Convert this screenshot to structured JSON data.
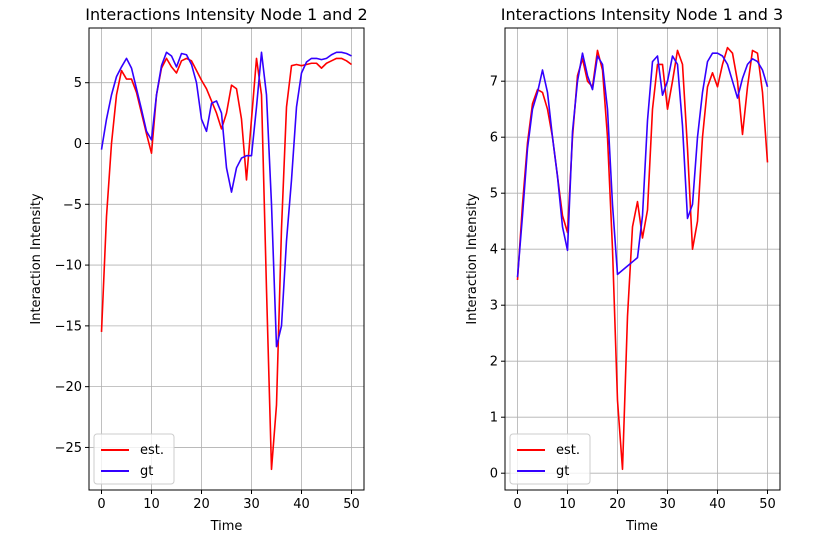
{
  "chart_data": [
    {
      "type": "line",
      "title": "Interactions Intensity Node 1 and 2",
      "xlabel": "Time",
      "ylabel": "Interaction Intensity",
      "xlim": [
        -2.5,
        52.5
      ],
      "ylim": [
        -28.5,
        9.5
      ],
      "xticks": [
        0,
        10,
        20,
        30,
        40,
        50
      ],
      "xtick_labels": [
        "0",
        "10",
        "20",
        "30",
        "40",
        "50"
      ],
      "yticks": [
        5,
        0,
        -5,
        -10,
        -15,
        -20,
        -25
      ],
      "ytick_labels": [
        "5",
        "0",
        "−5",
        "−10",
        "−15",
        "−20",
        "−25"
      ],
      "grid": true,
      "legend_position": "lower-left",
      "series": [
        {
          "name": "est.",
          "color": "#ff0000",
          "x": [
            0,
            1,
            2,
            3,
            4,
            5,
            6,
            7,
            8,
            9,
            10,
            11,
            12,
            13,
            14,
            15,
            16,
            17,
            18,
            19,
            20,
            21,
            22,
            23,
            24,
            25,
            26,
            27,
            28,
            29,
            30,
            31,
            32,
            33,
            34,
            35,
            36,
            37,
            38,
            39,
            40,
            41,
            42,
            43,
            44,
            45,
            46,
            47,
            48,
            49,
            50
          ],
          "y": [
            -15.5,
            -6.0,
            0.0,
            4.0,
            6.0,
            5.3,
            5.3,
            4.2,
            2.5,
            0.8,
            -0.8,
            4.0,
            6.2,
            7.0,
            6.3,
            5.8,
            6.8,
            7.0,
            6.8,
            6.0,
            5.2,
            4.5,
            3.5,
            2.5,
            1.2,
            2.5,
            4.8,
            4.5,
            2.0,
            -3.0,
            2.0,
            7.0,
            4.0,
            -12.0,
            -26.8,
            -21.5,
            -7.0,
            3.0,
            6.4,
            6.5,
            6.4,
            6.5,
            6.6,
            6.6,
            6.2,
            6.6,
            6.8,
            7.0,
            7.0,
            6.8,
            6.5
          ]
        },
        {
          "name": "gt",
          "color": "#3300ff",
          "x": [
            0,
            1,
            2,
            3,
            4,
            5,
            6,
            7,
            8,
            9,
            10,
            11,
            12,
            13,
            14,
            15,
            16,
            17,
            18,
            19,
            20,
            21,
            22,
            23,
            24,
            25,
            26,
            27,
            28,
            29,
            30,
            31,
            32,
            33,
            34,
            35,
            36,
            37,
            38,
            39,
            40,
            41,
            42,
            43,
            44,
            45,
            46,
            47,
            48,
            49,
            50
          ],
          "y": [
            -0.5,
            2.0,
            4.0,
            5.5,
            6.3,
            7.0,
            6.2,
            4.5,
            2.8,
            1.0,
            0.3,
            4.0,
            6.4,
            7.5,
            7.2,
            6.3,
            7.4,
            7.3,
            6.5,
            5.0,
            2.0,
            1.0,
            3.3,
            3.5,
            2.5,
            -2.0,
            -4.0,
            -2.0,
            -1.2,
            -1.0,
            -1.0,
            3.0,
            7.5,
            4.0,
            -5.0,
            -16.7,
            -15.0,
            -8.0,
            -3.0,
            3.0,
            5.8,
            6.7,
            7.0,
            7.0,
            6.9,
            7.0,
            7.3,
            7.5,
            7.5,
            7.4,
            7.2
          ]
        }
      ]
    },
    {
      "type": "line",
      "title": "Interactions Intensity Node 1 and 3",
      "xlabel": "Time",
      "ylabel": "Interaction Intensity",
      "xlim": [
        -2.5,
        52.5
      ],
      "ylim": [
        -0.3,
        7.95
      ],
      "xticks": [
        0,
        10,
        20,
        30,
        40,
        50
      ],
      "xtick_labels": [
        "0",
        "10",
        "20",
        "30",
        "40",
        "50"
      ],
      "yticks": [
        7,
        6,
        5,
        4,
        3,
        2,
        1,
        0
      ],
      "ytick_labels": [
        "7",
        "6",
        "5",
        "4",
        "3",
        "2",
        "1",
        "0"
      ],
      "grid": true,
      "legend_position": "lower-left",
      "series": [
        {
          "name": "est.",
          "color": "#ff0000",
          "x": [
            0,
            1,
            2,
            3,
            4,
            5,
            6,
            7,
            8,
            9,
            10,
            11,
            12,
            13,
            14,
            15,
            16,
            17,
            18,
            19,
            20,
            21,
            22,
            23,
            24,
            25,
            26,
            27,
            28,
            29,
            30,
            31,
            32,
            33,
            34,
            35,
            36,
            37,
            38,
            39,
            40,
            41,
            42,
            43,
            44,
            45,
            46,
            47,
            48,
            49,
            50
          ],
          "y": [
            3.45,
            4.8,
            5.9,
            6.6,
            6.85,
            6.8,
            6.5,
            6.0,
            5.3,
            4.6,
            4.3,
            6.0,
            7.1,
            7.4,
            7.0,
            6.9,
            7.55,
            7.2,
            6.0,
            4.0,
            1.3,
            0.07,
            2.8,
            4.4,
            4.85,
            4.2,
            4.7,
            6.5,
            7.3,
            7.3,
            6.5,
            7.0,
            7.55,
            7.3,
            5.8,
            4.0,
            4.5,
            6.0,
            6.9,
            7.15,
            6.9,
            7.3,
            7.6,
            7.5,
            7.0,
            6.05,
            6.9,
            7.55,
            7.5,
            6.8,
            5.55
          ]
        },
        {
          "name": "gt",
          "color": "#3300ff",
          "x": [
            0,
            1,
            2,
            3,
            4,
            5,
            6,
            7,
            8,
            9,
            10,
            11,
            12,
            13,
            14,
            15,
            16,
            17,
            18,
            19,
            20,
            22,
            24,
            25,
            26,
            27,
            28,
            29,
            30,
            31,
            32,
            33,
            34,
            35,
            36,
            37,
            38,
            39,
            40,
            41,
            42,
            43,
            44,
            45,
            46,
            47,
            48,
            49,
            50
          ],
          "y": [
            3.5,
            4.6,
            5.8,
            6.5,
            6.8,
            7.2,
            6.8,
            6.0,
            5.3,
            4.4,
            3.98,
            6.1,
            7.0,
            7.5,
            7.1,
            6.85,
            7.45,
            7.3,
            6.5,
            4.8,
            3.55,
            3.7,
            3.85,
            4.6,
            6.3,
            7.35,
            7.45,
            6.75,
            7.0,
            7.45,
            7.3,
            6.2,
            4.55,
            4.8,
            6.0,
            6.8,
            7.35,
            7.5,
            7.5,
            7.45,
            7.3,
            7.0,
            6.7,
            7.05,
            7.3,
            7.4,
            7.35,
            7.2,
            6.9
          ]
        }
      ]
    }
  ]
}
